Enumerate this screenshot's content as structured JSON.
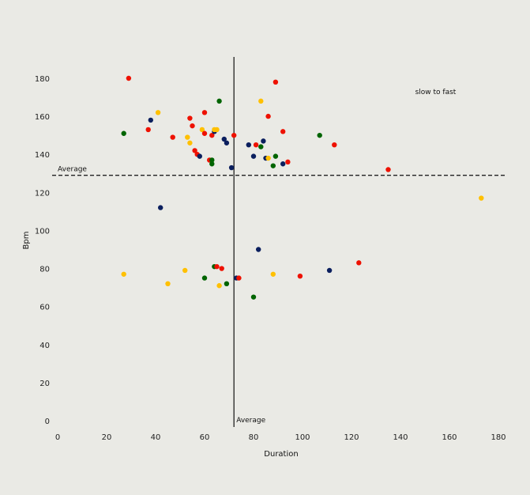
{
  "colors": {
    "background": "#eaeae5",
    "red": "#ee1100",
    "yellow": "#ffc000",
    "green": "#006400",
    "navy": "#0b1f5e"
  },
  "chart_data": {
    "type": "scatter",
    "title": "",
    "xlabel": "Duration",
    "ylabel": "Bpm",
    "xlim": [
      0,
      180
    ],
    "ylim": [
      0,
      180
    ],
    "xticks": [
      0,
      20,
      40,
      60,
      80,
      100,
      120,
      140,
      160,
      180
    ],
    "yticks": [
      0,
      20,
      40,
      60,
      80,
      100,
      120,
      140,
      160,
      180
    ],
    "grid": false,
    "legend": "none",
    "reference_lines": [
      {
        "axis": "y",
        "value": 129,
        "style": "dashed",
        "label": "Average"
      },
      {
        "axis": "x",
        "value": 72,
        "style": "solid",
        "label": "Average"
      }
    ],
    "annotations": [
      {
        "text": "slow to fast",
        "x": 146,
        "y": 173
      }
    ],
    "points": [
      {
        "x": 29,
        "y": 180,
        "color": "red"
      },
      {
        "x": 89,
        "y": 178,
        "color": "red"
      },
      {
        "x": 66,
        "y": 168,
        "color": "green"
      },
      {
        "x": 83,
        "y": 168,
        "color": "yellow"
      },
      {
        "x": 41,
        "y": 162,
        "color": "yellow"
      },
      {
        "x": 60,
        "y": 162,
        "color": "red"
      },
      {
        "x": 86,
        "y": 160,
        "color": "red"
      },
      {
        "x": 38,
        "y": 158,
        "color": "navy"
      },
      {
        "x": 54,
        "y": 159,
        "color": "red"
      },
      {
        "x": 55,
        "y": 155,
        "color": "red"
      },
      {
        "x": 37,
        "y": 153,
        "color": "red"
      },
      {
        "x": 27,
        "y": 151,
        "color": "green"
      },
      {
        "x": 47,
        "y": 149,
        "color": "red"
      },
      {
        "x": 53,
        "y": 149,
        "color": "yellow"
      },
      {
        "x": 54,
        "y": 146,
        "color": "yellow"
      },
      {
        "x": 59,
        "y": 153,
        "color": "yellow"
      },
      {
        "x": 60,
        "y": 151,
        "color": "red"
      },
      {
        "x": 63,
        "y": 150,
        "color": "red"
      },
      {
        "x": 64,
        "y": 152,
        "color": "navy"
      },
      {
        "x": 64,
        "y": 153,
        "color": "yellow"
      },
      {
        "x": 65,
        "y": 153,
        "color": "yellow"
      },
      {
        "x": 68,
        "y": 148,
        "color": "navy"
      },
      {
        "x": 69,
        "y": 146,
        "color": "navy"
      },
      {
        "x": 72,
        "y": 150,
        "color": "red"
      },
      {
        "x": 92,
        "y": 152,
        "color": "red"
      },
      {
        "x": 107,
        "y": 150,
        "color": "green"
      },
      {
        "x": 113,
        "y": 145,
        "color": "red"
      },
      {
        "x": 78,
        "y": 145,
        "color": "navy"
      },
      {
        "x": 81,
        "y": 145,
        "color": "red"
      },
      {
        "x": 83,
        "y": 144,
        "color": "green"
      },
      {
        "x": 84,
        "y": 147,
        "color": "navy"
      },
      {
        "x": 80,
        "y": 139,
        "color": "navy"
      },
      {
        "x": 85,
        "y": 138,
        "color": "navy"
      },
      {
        "x": 86,
        "y": 138,
        "color": "yellow"
      },
      {
        "x": 88,
        "y": 134,
        "color": "green"
      },
      {
        "x": 89,
        "y": 139,
        "color": "green"
      },
      {
        "x": 92,
        "y": 135,
        "color": "navy"
      },
      {
        "x": 94,
        "y": 136,
        "color": "red"
      },
      {
        "x": 56,
        "y": 142,
        "color": "red"
      },
      {
        "x": 57,
        "y": 140,
        "color": "red"
      },
      {
        "x": 58,
        "y": 139,
        "color": "navy"
      },
      {
        "x": 62,
        "y": 137,
        "color": "red"
      },
      {
        "x": 63,
        "y": 137,
        "color": "green"
      },
      {
        "x": 63,
        "y": 135,
        "color": "green"
      },
      {
        "x": 71,
        "y": 133,
        "color": "navy"
      },
      {
        "x": 135,
        "y": 132,
        "color": "red"
      },
      {
        "x": 173,
        "y": 117,
        "color": "yellow"
      },
      {
        "x": 42,
        "y": 112,
        "color": "navy"
      },
      {
        "x": 82,
        "y": 90,
        "color": "navy"
      },
      {
        "x": 123,
        "y": 83,
        "color": "red"
      },
      {
        "x": 111,
        "y": 79,
        "color": "navy"
      },
      {
        "x": 27,
        "y": 77,
        "color": "yellow"
      },
      {
        "x": 52,
        "y": 79,
        "color": "yellow"
      },
      {
        "x": 45,
        "y": 72,
        "color": "yellow"
      },
      {
        "x": 60,
        "y": 75,
        "color": "green"
      },
      {
        "x": 64,
        "y": 81,
        "color": "green"
      },
      {
        "x": 65,
        "y": 81,
        "color": "red"
      },
      {
        "x": 67,
        "y": 80,
        "color": "red"
      },
      {
        "x": 66,
        "y": 71,
        "color": "yellow"
      },
      {
        "x": 69,
        "y": 72,
        "color": "green"
      },
      {
        "x": 73,
        "y": 75,
        "color": "navy"
      },
      {
        "x": 74,
        "y": 75,
        "color": "red"
      },
      {
        "x": 88,
        "y": 77,
        "color": "yellow"
      },
      {
        "x": 99,
        "y": 76,
        "color": "red"
      },
      {
        "x": 80,
        "y": 65,
        "color": "green"
      }
    ]
  }
}
